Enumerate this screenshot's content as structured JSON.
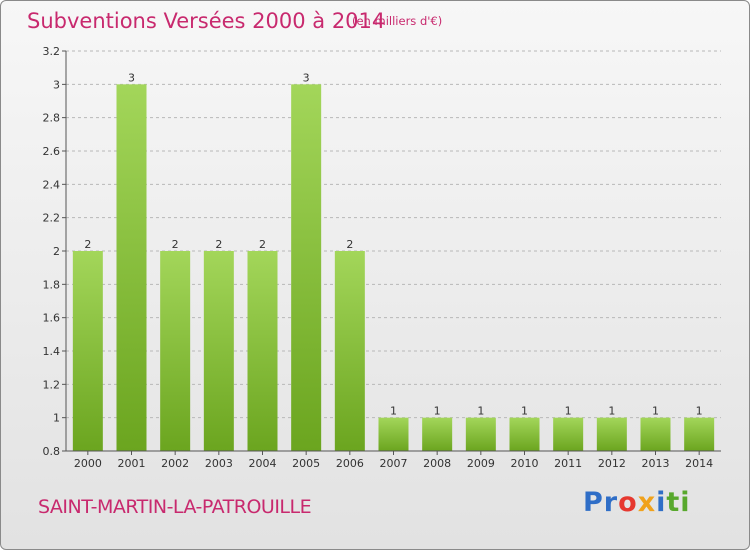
{
  "title": "Subventions Versées 2000 à 2014",
  "subtitle": "(en milliers d'€)",
  "commune": "SAINT-MARTIN-LA-PATROUILLE",
  "logo": {
    "text": "Proxiti",
    "letters": [
      {
        "ch": "P",
        "color": "#2f6ec7"
      },
      {
        "ch": "r",
        "color": "#2f6ec7"
      },
      {
        "ch": "o",
        "color": "#e6382f"
      },
      {
        "ch": "x",
        "color": "#f0a21c"
      },
      {
        "ch": "i",
        "color": "#2f6ec7"
      },
      {
        "ch": "t",
        "color": "#58a82d"
      },
      {
        "ch": "i",
        "color": "#58a82d"
      }
    ]
  },
  "chart_data": {
    "type": "bar",
    "categories": [
      "2000",
      "2001",
      "2002",
      "2003",
      "2004",
      "2005",
      "2006",
      "2007",
      "2008",
      "2009",
      "2010",
      "2011",
      "2012",
      "2013",
      "2014"
    ],
    "values": [
      2,
      3,
      2,
      2,
      2,
      3,
      2,
      1,
      1,
      1,
      1,
      1,
      1,
      1,
      1
    ],
    "value_labels": [
      "2",
      "3",
      "2",
      "2",
      "2",
      "3",
      "2",
      "1",
      "1",
      "1",
      "1",
      "1",
      "1",
      "1",
      "1"
    ],
    "ylim": [
      0.8,
      3.2
    ],
    "yticks": [
      "0.8",
      "1",
      "1.2",
      "1.4",
      "1.6",
      "1.8",
      "2",
      "2.2",
      "2.4",
      "2.6",
      "2.8",
      "3",
      "3.2"
    ],
    "grid": "horizontal dashed",
    "bar_color": "#8dc63f"
  }
}
